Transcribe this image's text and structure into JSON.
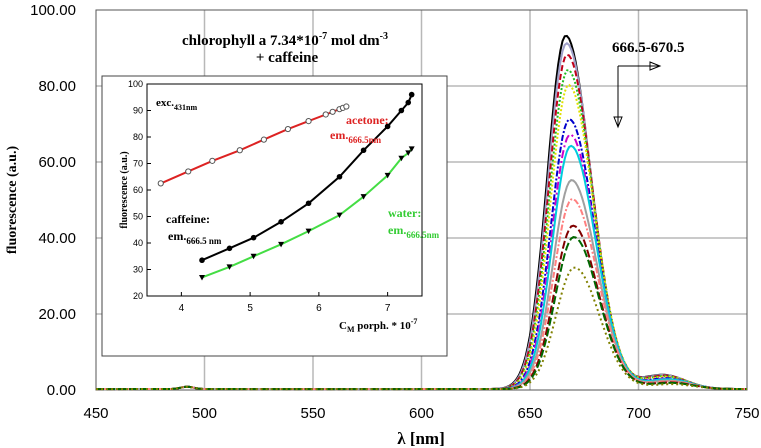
{
  "chart_data": [
    {
      "id": "main",
      "type": "line",
      "xlabel": "λ [nm]",
      "ylabel": "fluorescence (a.u.)",
      "xlim": [
        450,
        750
      ],
      "ylim": [
        0,
        100
      ],
      "x_ticks": [
        "450",
        "500",
        "550",
        "600",
        "650",
        "700",
        "750"
      ],
      "y_ticks": [
        "0.00",
        "20.00",
        "40.00",
        "60.00",
        "80.00",
        "100.00"
      ],
      "title_line1_base": "chlorophyll a 7.34*10",
      "title_line1_exp": "-7",
      "title_line1_unit": " mol dm",
      "title_line1_unit_exp": "-3",
      "title_line2": "+ caffeine",
      "annotation": "666.5-670.5",
      "peak_model": {
        "center_start": 666.5,
        "center_end": 670.5,
        "sigma_left": 8.5,
        "sigma_right": 11.5,
        "small_peak_x": 492
      },
      "series": [
        {
          "name": "s1",
          "peak": 93,
          "color": "#000000",
          "dash": ""
        },
        {
          "name": "s2",
          "peak": 91,
          "color": "#a0a0c8",
          "dash": ""
        },
        {
          "name": "s3",
          "peak": 88,
          "color": "#c0001a",
          "dash": "6,3"
        },
        {
          "name": "s4",
          "peak": 84,
          "color": "#22bb22",
          "dash": "2,2"
        },
        {
          "name": "s5",
          "peak": 80,
          "color": "#e0e000",
          "dash": "2,2"
        },
        {
          "name": "s6",
          "peak": 71,
          "color": "#0000cc",
          "dash": "6,2,2,2"
        },
        {
          "name": "s7",
          "peak": 67,
          "color": "#cc00cc",
          "dash": "8,3,2,3"
        },
        {
          "name": "s8",
          "peak": 64,
          "color": "#00ccdd",
          "dash": ""
        },
        {
          "name": "s9",
          "peak": 55,
          "color": "#a0a0a0",
          "dash": ""
        },
        {
          "name": "s10",
          "peak": 50,
          "color": "#ff8080",
          "dash": "6,2,2,2"
        },
        {
          "name": "s11",
          "peak": 43,
          "color": "#800000",
          "dash": "8,3"
        },
        {
          "name": "s12",
          "peak": 40,
          "color": "#006600",
          "dash": "8,3"
        },
        {
          "name": "s13",
          "peak": 32,
          "color": "#808000",
          "dash": "2,3"
        }
      ]
    },
    {
      "id": "inset",
      "type": "line",
      "xlabel": "C",
      "xlabel_sub": "M",
      "xlabel_rest": " porph. * 10",
      "xlabel_exp": "-7",
      "ylabel": "fluorescence (a.u.)",
      "xlim": [
        3.5,
        7.5
      ],
      "ylim": [
        20,
        100
      ],
      "x_ticks": [
        "4",
        "5",
        "6",
        "7"
      ],
      "y_ticks": [
        "20",
        "30",
        "40",
        "50",
        "60",
        "70",
        "80",
        "90",
        "100"
      ],
      "exc_label": "exc.",
      "exc_sub": "431nm",
      "series": [
        {
          "name": "acetone",
          "label_line1": "acetone:",
          "label_line2": "em.",
          "label_sub": "666.5nm",
          "color": "#dd2222",
          "marker": "open-circle",
          "x": [
            3.7,
            4.1,
            4.45,
            4.85,
            5.2,
            5.55,
            5.85,
            6.1,
            6.2,
            6.3,
            6.35,
            6.4
          ],
          "y": [
            62.5,
            67,
            71,
            75,
            79,
            83,
            86,
            88.5,
            89.5,
            90.5,
            91,
            91.5
          ]
        },
        {
          "name": "caffeine",
          "label_line1": "caffeine:",
          "label_line2": "em.",
          "label_sub": "666.5 nm",
          "color": "#000000",
          "marker": "filled-circle",
          "x": [
            4.3,
            4.7,
            5.05,
            5.45,
            5.85,
            6.3,
            6.65,
            7.0,
            7.2,
            7.3,
            7.35
          ],
          "y": [
            33.5,
            38,
            42,
            48,
            55,
            65,
            75,
            84,
            90,
            93,
            96
          ]
        },
        {
          "name": "water",
          "label_line1": "water:",
          "label_line2": "em.",
          "label_sub": "666.5nm",
          "color": "#44dd44",
          "marker": "filled-triangle",
          "x": [
            4.3,
            4.7,
            5.05,
            5.45,
            5.85,
            6.3,
            6.65,
            7.0,
            7.2,
            7.3,
            7.35
          ],
          "y": [
            27,
            31,
            35,
            39.5,
            44.5,
            50.5,
            57.5,
            65.5,
            72,
            74,
            75.5
          ]
        }
      ]
    }
  ]
}
